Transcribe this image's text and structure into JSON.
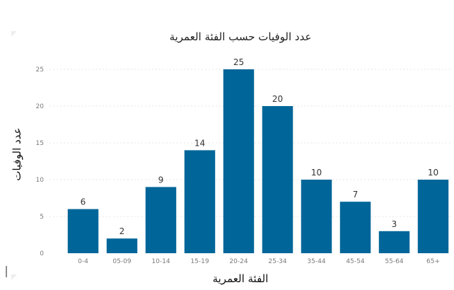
{
  "chart_data": {
    "type": "bar",
    "title": "عدد الوفيات حسب الفئة العمرية",
    "xlabel": "الفئة العمرية",
    "ylabel": "عدد الوفيات",
    "categories": [
      "0-4",
      "05-09",
      "10-14",
      "15-19",
      "20-24",
      "25-34",
      "35-44",
      "45-54",
      "55-64",
      "65+"
    ],
    "values": [
      6,
      2,
      9,
      14,
      25,
      20,
      10,
      7,
      3,
      10
    ],
    "ylim": [
      0,
      25
    ],
    "yticks": [
      0,
      5,
      10,
      15,
      20,
      25
    ],
    "grid": true,
    "bar_color": "#006699",
    "data_labels": true
  }
}
